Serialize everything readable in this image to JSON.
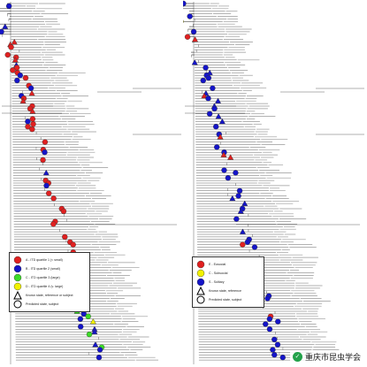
{
  "figure": {
    "left": {
      "legend": [
        {
          "label": "A - ITD quartile 1 (< small)",
          "symbol": "circle",
          "color": "#e02020"
        },
        {
          "label": "B - ITD quartile 2 (small)",
          "symbol": "circle",
          "color": "#1414c8"
        },
        {
          "label": "C - ITD quartile 3 (large)",
          "symbol": "circle",
          "color": "#3cdc28"
        },
        {
          "label": "D - ITD quartile 4 (v. large)",
          "symbol": "circle",
          "color": "#f2f200"
        },
        {
          "label": "Known state, reference or subject",
          "symbol": "triangle-open",
          "color": "#000000"
        },
        {
          "label": "Predicted state, subject",
          "symbol": "circle-open",
          "color": "#000000"
        }
      ]
    },
    "right": {
      "legend": [
        {
          "label": "E - Eusocial",
          "symbol": "circle",
          "color": "#e02020"
        },
        {
          "label": "C - Subsocial",
          "symbol": "circle",
          "color": "#f2f200"
        },
        {
          "label": "S - Solitary",
          "symbol": "circle",
          "color": "#1414c8"
        },
        {
          "label": "Known state, reference",
          "symbol": "triangle-open",
          "color": "#000000"
        },
        {
          "label": "Predicted state, subject",
          "symbol": "circle-open",
          "color": "#000000"
        }
      ]
    },
    "watermark": {
      "icon": "wechat-icon",
      "text": "重庆市昆虫学会"
    }
  }
}
